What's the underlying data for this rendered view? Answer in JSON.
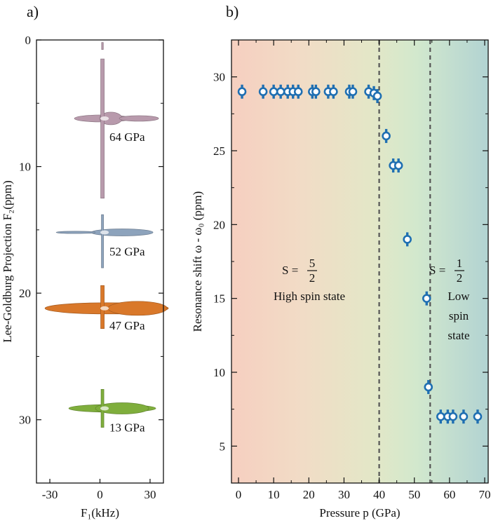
{
  "chart_data": [
    {
      "type": "contour",
      "panel_label": "a)",
      "xlabel": "F₁(kHz)",
      "ylabel": "Lee-Goldburg Projection F₂(ppm)",
      "xlim": [
        -38,
        38
      ],
      "ylim": [
        0,
        35
      ],
      "y_inverted": true,
      "xticks": [
        -30,
        0,
        30
      ],
      "yticks": [
        0,
        10,
        20,
        30
      ],
      "spectra": [
        {
          "label": "64 GPa",
          "center_ppm": 6.2,
          "color": "#b89aac"
        },
        {
          "label": "52 GPa",
          "center_ppm": 15.2,
          "color": "#8da3bc"
        },
        {
          "label": "47 GPa",
          "center_ppm": 21.2,
          "color": "#d9782a"
        },
        {
          "label": "13 GPa",
          "center_ppm": 29.1,
          "color": "#7fae3c"
        }
      ]
    },
    {
      "type": "scatter",
      "panel_label": "b)",
      "xlabel": "Pressure p (GPa)",
      "ylabel": "Resonance shift ω - ω₀ (ppm)",
      "xlim": [
        -2,
        71
      ],
      "ylim": [
        2.5,
        32.5
      ],
      "xticks": [
        0,
        10,
        20,
        30,
        40,
        50,
        60,
        70
      ],
      "yticks": [
        5,
        10,
        15,
        20,
        25,
        30
      ],
      "marker_color": "#1f6fb2",
      "vlines": [
        40,
        54.5
      ],
      "points": [
        [
          1,
          29
        ],
        [
          7,
          29
        ],
        [
          10,
          29
        ],
        [
          12,
          29
        ],
        [
          14,
          29
        ],
        [
          15.5,
          29
        ],
        [
          17,
          29
        ],
        [
          21,
          29
        ],
        [
          22,
          29
        ],
        [
          25.5,
          29
        ],
        [
          27,
          29
        ],
        [
          31.5,
          29
        ],
        [
          32.5,
          29
        ],
        [
          37,
          29
        ],
        [
          38.5,
          28.9
        ],
        [
          39.5,
          28.7
        ],
        [
          42,
          26
        ],
        [
          44,
          24
        ],
        [
          45.5,
          24
        ],
        [
          48,
          19
        ],
        [
          53.5,
          15
        ],
        [
          54,
          9
        ],
        [
          57.5,
          7
        ],
        [
          59.5,
          7
        ],
        [
          61,
          7
        ],
        [
          64,
          7
        ],
        [
          68,
          7
        ]
      ],
      "regions": [
        {
          "S_label": "S =",
          "fraction_num": "5",
          "fraction_den": "2",
          "description": [
            "High spin state"
          ]
        },
        {
          "S_label": "S =",
          "fraction_num": "1",
          "fraction_den": "2",
          "description": [
            "Low",
            "spin",
            "state"
          ]
        }
      ]
    }
  ]
}
